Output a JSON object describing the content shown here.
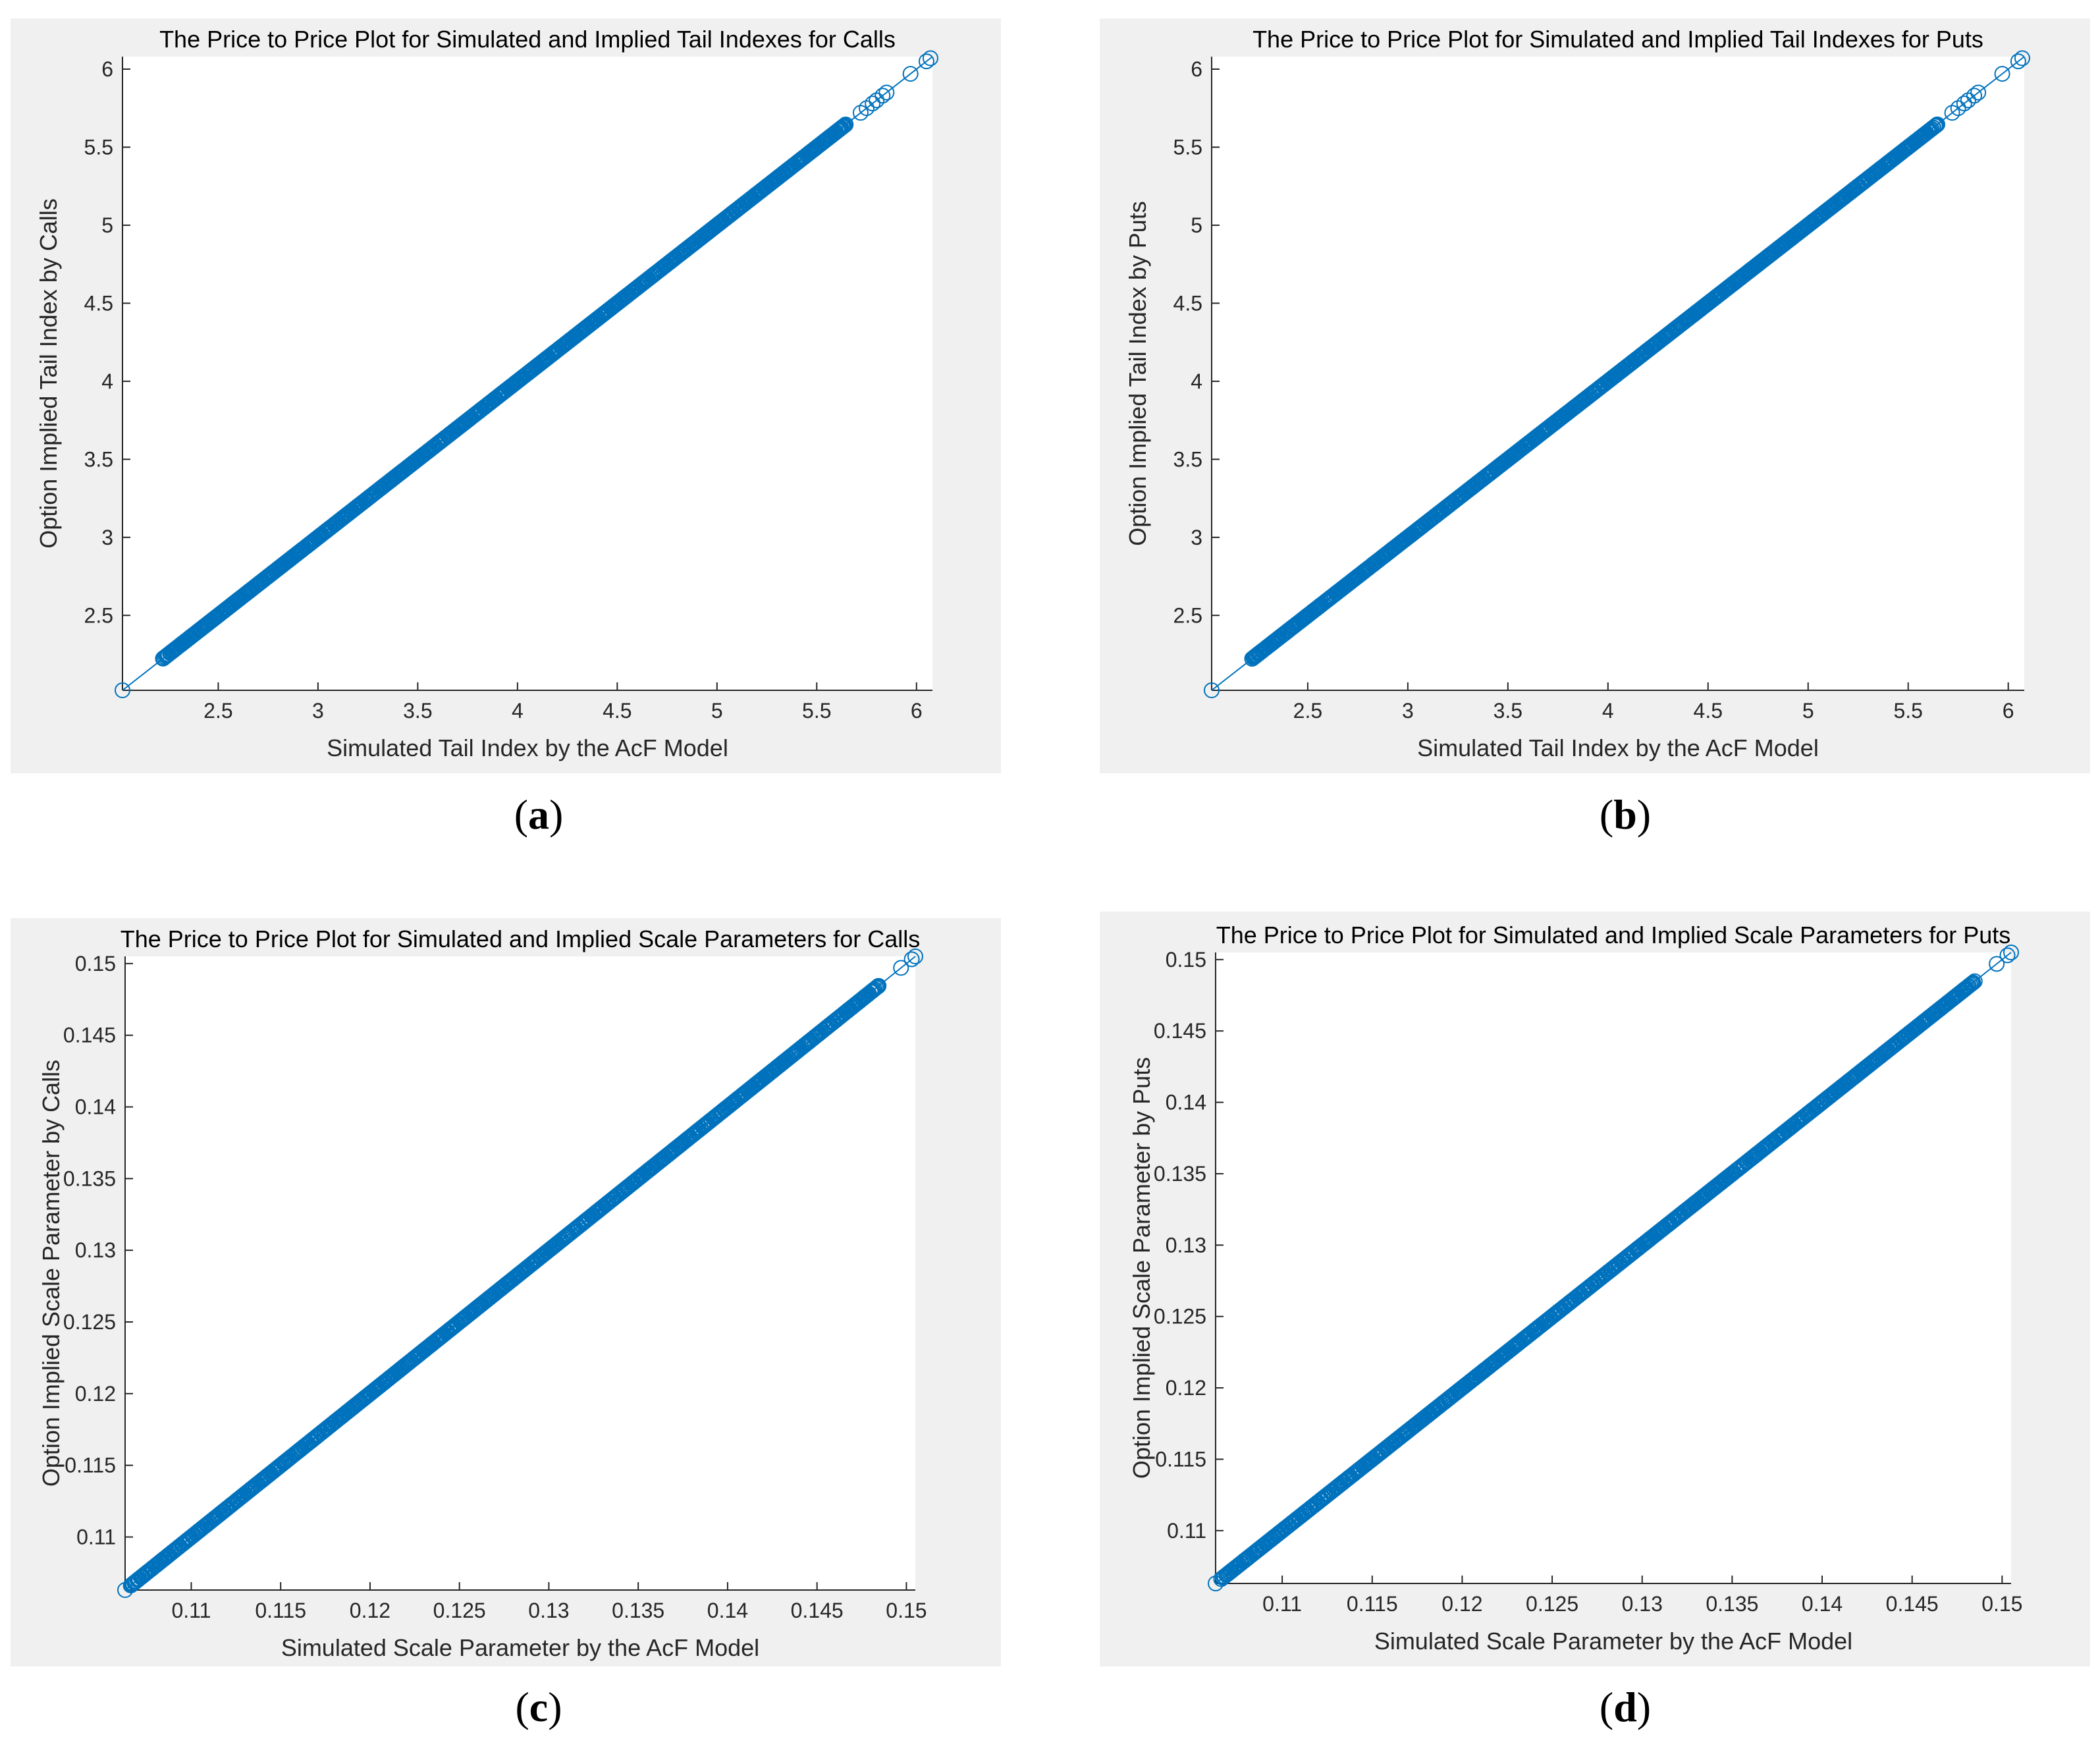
{
  "chart_data": [
    {
      "id": "a",
      "type": "scatter",
      "title": "The Price to Price Plot for Simulated and Implied Tail Indexes for Calls",
      "xlabel": "Simulated Tail Index by the AcF Model",
      "ylabel": "Option Implied Tail Index by Calls",
      "xlim": [
        2.02,
        6.08
      ],
      "ylim": [
        2.02,
        6.08
      ],
      "xticks": [
        "2.5",
        "3",
        "3.5",
        "4",
        "4.5",
        "5",
        "5.5",
        "6"
      ],
      "yticks": [
        "2.5",
        "3",
        "3.5",
        "4",
        "4.5",
        "5",
        "5.5",
        "6"
      ],
      "line": {
        "x": [
          2.02,
          6.08
        ],
        "y": [
          2.02,
          6.08
        ]
      },
      "points": {
        "min": 2.22,
        "max": 5.65,
        "count": 700,
        "extra": [
          2.02,
          5.72,
          5.75,
          5.78,
          5.8,
          5.83,
          5.85,
          5.97,
          6.05,
          6.07
        ]
      },
      "caption": "a",
      "color": "#0072BD",
      "background": "#f0f0f0"
    },
    {
      "id": "b",
      "type": "scatter",
      "title": "The Price to Price Plot for Simulated and Implied Tail Indexes for Puts",
      "xlabel": "Simulated Tail Index by the AcF Model",
      "ylabel": "Option Implied Tail Index by Puts",
      "xlim": [
        2.02,
        6.08
      ],
      "ylim": [
        2.02,
        6.08
      ],
      "xticks": [
        "2.5",
        "3",
        "3.5",
        "4",
        "4.5",
        "5",
        "5.5",
        "6"
      ],
      "yticks": [
        "2.5",
        "3",
        "3.5",
        "4",
        "4.5",
        "5",
        "5.5",
        "6"
      ],
      "line": {
        "x": [
          2.02,
          6.08
        ],
        "y": [
          2.02,
          6.08
        ]
      },
      "points": {
        "min": 2.22,
        "max": 5.65,
        "count": 700,
        "extra": [
          2.02,
          5.72,
          5.75,
          5.78,
          5.8,
          5.83,
          5.85,
          5.97,
          6.05,
          6.07
        ]
      },
      "caption": "b",
      "color": "#0072BD",
      "background": "#f0f0f0"
    },
    {
      "id": "c",
      "type": "scatter",
      "title": "The Price to Price Plot for Simulated and Implied Scale Parameters for Calls",
      "xlabel": "Simulated Scale Parameter by the AcF Model",
      "ylabel": "Option Implied Scale Parameter by Calls",
      "xlim": [
        0.1063,
        0.1505
      ],
      "ylim": [
        0.1063,
        0.1505
      ],
      "xticks": [
        "0.11",
        "0.115",
        "0.12",
        "0.125",
        "0.13",
        "0.135",
        "0.14",
        "0.145",
        "0.15"
      ],
      "yticks": [
        "0.11",
        "0.115",
        "0.12",
        "0.125",
        "0.13",
        "0.135",
        "0.14",
        "0.145",
        "0.15"
      ],
      "line": {
        "x": [
          0.1063,
          0.1505
        ],
        "y": [
          0.1063,
          0.1505
        ]
      },
      "points": {
        "min": 0.1066,
        "max": 0.1485,
        "count": 700,
        "extra": [
          0.1063,
          0.1497,
          0.1503,
          0.1505
        ]
      },
      "caption": "c",
      "color": "#0072BD",
      "background": "#f0f0f0"
    },
    {
      "id": "d",
      "type": "scatter",
      "title": "The Price to Price Plot for Simulated and Implied Scale Parameters for Puts",
      "xlabel": "Simulated Scale Parameter by the AcF Model",
      "ylabel": "Option Implied Scale Parameter by Puts",
      "xlim": [
        0.1063,
        0.1505
      ],
      "ylim": [
        0.1063,
        0.1505
      ],
      "xticks": [
        "0.11",
        "0.115",
        "0.12",
        "0.125",
        "0.13",
        "0.135",
        "0.14",
        "0.145",
        "0.15"
      ],
      "yticks": [
        "0.11",
        "0.115",
        "0.12",
        "0.125",
        "0.13",
        "0.135",
        "0.14",
        "0.145",
        "0.15"
      ],
      "line": {
        "x": [
          0.1063,
          0.1505
        ],
        "y": [
          0.1063,
          0.1505
        ]
      },
      "points": {
        "min": 0.1066,
        "max": 0.1485,
        "count": 700,
        "extra": [
          0.1063,
          0.1497,
          0.1503,
          0.1505
        ]
      },
      "caption": "d",
      "color": "#0072BD",
      "background": "#f0f0f0"
    }
  ]
}
